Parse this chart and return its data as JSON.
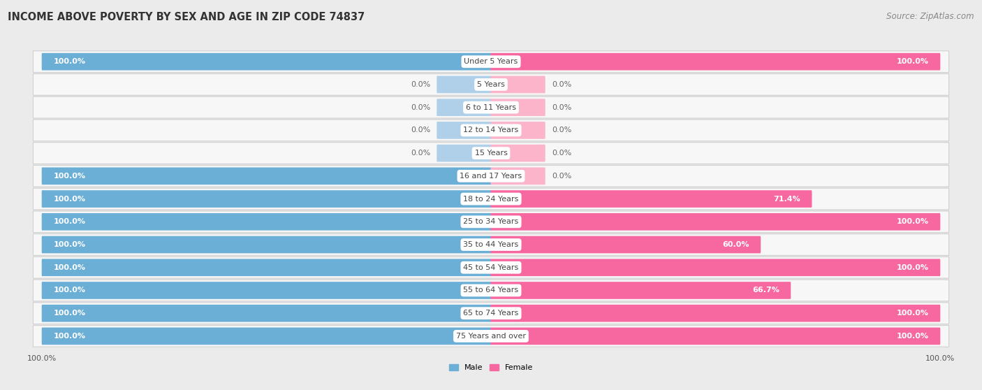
{
  "title": "INCOME ABOVE POVERTY BY SEX AND AGE IN ZIP CODE 74837",
  "source": "Source: ZipAtlas.com",
  "categories": [
    "Under 5 Years",
    "5 Years",
    "6 to 11 Years",
    "12 to 14 Years",
    "15 Years",
    "16 and 17 Years",
    "18 to 24 Years",
    "25 to 34 Years",
    "35 to 44 Years",
    "45 to 54 Years",
    "55 to 64 Years",
    "65 to 74 Years",
    "75 Years and over"
  ],
  "male_values": [
    100.0,
    0.0,
    0.0,
    0.0,
    0.0,
    100.0,
    100.0,
    100.0,
    100.0,
    100.0,
    100.0,
    100.0,
    100.0
  ],
  "female_values": [
    100.0,
    0.0,
    0.0,
    0.0,
    0.0,
    0.0,
    71.4,
    100.0,
    60.0,
    100.0,
    66.7,
    100.0,
    100.0
  ],
  "male_color": "#6baed6",
  "female_color": "#f768a1",
  "male_color_light": "#afd0e8",
  "female_color_light": "#fbb4c9",
  "background_color": "#ebebeb",
  "row_bg_color": "#f7f7f7",
  "bar_height": 0.58,
  "stub_size": 12.0,
  "xlim": 100,
  "legend_male": "Male",
  "legend_female": "Female",
  "title_fontsize": 10.5,
  "source_fontsize": 8.5,
  "label_fontsize": 8.0,
  "category_fontsize": 8.0,
  "axis_label_fontsize": 8.0
}
